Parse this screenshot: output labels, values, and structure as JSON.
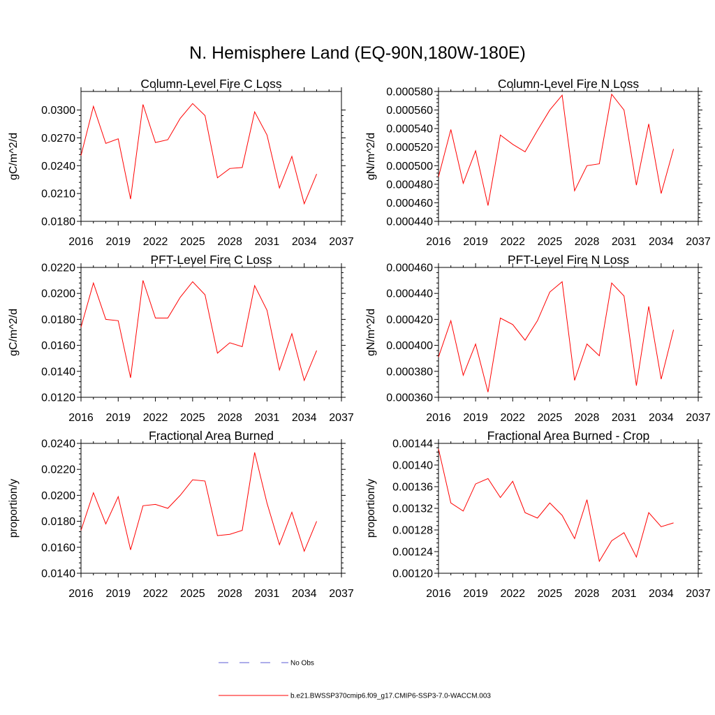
{
  "main_title": "N. Hemisphere Land (EQ-90N,180W-180E)",
  "colors": {
    "model_line": "#ff0000",
    "obs_line": "#5b5bd6",
    "axis": "#000000"
  },
  "legend": {
    "obs_label": "No Obs",
    "model_label": "b.e21.BWSSP370cmip6.f09_g17.CMIP6-SSP3-7.0-WACCM.003"
  },
  "chart_data": [
    {
      "type": "line",
      "title": "Column-Level Fire C Loss",
      "ylabel": "gC/m^2/d",
      "xlabel": "",
      "xlim": [
        2016,
        2037
      ],
      "x_ticks": [
        2016,
        2019,
        2022,
        2025,
        2028,
        2031,
        2034,
        2037
      ],
      "ylim": [
        0.018,
        0.032
      ],
      "y_ticks": [
        0.018,
        0.021,
        0.024,
        0.027,
        0.03
      ],
      "y_decimals": 4,
      "series": [
        {
          "name": "b.e21.BWSSP370cmip6.f09_g17.CMIP6-SSP3-7.0-WACCM.003",
          "x": [
            2016,
            2017,
            2018,
            2019,
            2020,
            2021,
            2022,
            2023,
            2024,
            2025,
            2026,
            2027,
            2028,
            2029,
            2030,
            2031,
            2032,
            2033,
            2034,
            2035
          ],
          "values": [
            0.0251,
            0.0304,
            0.0264,
            0.0269,
            0.0204,
            0.0306,
            0.0265,
            0.0268,
            0.0291,
            0.0307,
            0.0294,
            0.0227,
            0.0237,
            0.0238,
            0.0298,
            0.0273,
            0.0216,
            0.025,
            0.0199,
            0.0231
          ]
        }
      ]
    },
    {
      "type": "line",
      "title": "Column-Level Fire N Loss",
      "ylabel": "gN/m^2/d",
      "xlabel": "",
      "xlim": [
        2016,
        2037
      ],
      "x_ticks": [
        2016,
        2019,
        2022,
        2025,
        2028,
        2031,
        2034,
        2037
      ],
      "ylim": [
        0.00044,
        0.00058
      ],
      "y_ticks": [
        0.00044,
        0.00046,
        0.00048,
        0.0005,
        0.00052,
        0.00054,
        0.00056,
        0.00058
      ],
      "y_decimals": 6,
      "series": [
        {
          "name": "b.e21.BWSSP370cmip6.f09_g17.CMIP6-SSP3-7.0-WACCM.003",
          "x": [
            2016,
            2017,
            2018,
            2019,
            2020,
            2021,
            2022,
            2023,
            2024,
            2025,
            2026,
            2027,
            2028,
            2029,
            2030,
            2031,
            2032,
            2033,
            2034,
            2035
          ],
          "values": [
            0.000488,
            0.000539,
            0.000481,
            0.000516,
            0.000457,
            0.000533,
            0.000523,
            0.000515,
            0.000538,
            0.00056,
            0.000576,
            0.000473,
            0.0005,
            0.000502,
            0.000577,
            0.00056,
            0.000479,
            0.000545,
            0.00047,
            0.000518
          ]
        }
      ]
    },
    {
      "type": "line",
      "title": "PFT-Level Fire C Loss",
      "ylabel": "gC/m^2/d",
      "xlabel": "",
      "xlim": [
        2016,
        2037
      ],
      "x_ticks": [
        2016,
        2019,
        2022,
        2025,
        2028,
        2031,
        2034,
        2037
      ],
      "ylim": [
        0.012,
        0.022
      ],
      "y_ticks": [
        0.012,
        0.014,
        0.016,
        0.018,
        0.02,
        0.022
      ],
      "y_decimals": 4,
      "series": [
        {
          "name": "b.e21.BWSSP370cmip6.f09_g17.CMIP6-SSP3-7.0-WACCM.003",
          "x": [
            2016,
            2017,
            2018,
            2019,
            2020,
            2021,
            2022,
            2023,
            2024,
            2025,
            2026,
            2027,
            2028,
            2029,
            2030,
            2031,
            2032,
            2033,
            2034,
            2035
          ],
          "values": [
            0.0174,
            0.0208,
            0.018,
            0.0179,
            0.0135,
            0.021,
            0.0181,
            0.0181,
            0.0197,
            0.0209,
            0.0199,
            0.0154,
            0.0162,
            0.0159,
            0.0206,
            0.0187,
            0.0141,
            0.0169,
            0.0133,
            0.0156
          ]
        }
      ]
    },
    {
      "type": "line",
      "title": "PFT-Level Fire N Loss",
      "ylabel": "gN/m^2/d",
      "xlabel": "",
      "xlim": [
        2016,
        2037
      ],
      "x_ticks": [
        2016,
        2019,
        2022,
        2025,
        2028,
        2031,
        2034,
        2037
      ],
      "ylim": [
        0.00036,
        0.00046
      ],
      "y_ticks": [
        0.00036,
        0.00038,
        0.0004,
        0.00042,
        0.00044,
        0.00046
      ],
      "y_decimals": 6,
      "series": [
        {
          "name": "b.e21.BWSSP370cmip6.f09_g17.CMIP6-SSP3-7.0-WACCM.003",
          "x": [
            2016,
            2017,
            2018,
            2019,
            2020,
            2021,
            2022,
            2023,
            2024,
            2025,
            2026,
            2027,
            2028,
            2029,
            2030,
            2031,
            2032,
            2033,
            2034,
            2035
          ],
          "values": [
            0.000391,
            0.000419,
            0.000377,
            0.000401,
            0.000364,
            0.000421,
            0.000416,
            0.000404,
            0.000419,
            0.000441,
            0.000449,
            0.000373,
            0.000401,
            0.000392,
            0.000448,
            0.000438,
            0.000369,
            0.00043,
            0.000374,
            0.000412
          ]
        }
      ]
    },
    {
      "type": "line",
      "title": "Fractional Area Burned",
      "ylabel": "proportion/y",
      "xlabel": "",
      "xlim": [
        2016,
        2037
      ],
      "x_ticks": [
        2016,
        2019,
        2022,
        2025,
        2028,
        2031,
        2034,
        2037
      ],
      "ylim": [
        0.014,
        0.024
      ],
      "y_ticks": [
        0.014,
        0.016,
        0.018,
        0.02,
        0.022,
        0.024
      ],
      "y_decimals": 4,
      "series": [
        {
          "name": "b.e21.BWSSP370cmip6.f09_g17.CMIP6-SSP3-7.0-WACCM.003",
          "x": [
            2016,
            2017,
            2018,
            2019,
            2020,
            2021,
            2022,
            2023,
            2024,
            2025,
            2026,
            2027,
            2028,
            2029,
            2030,
            2031,
            2032,
            2033,
            2034,
            2035
          ],
          "values": [
            0.0173,
            0.0202,
            0.0178,
            0.0199,
            0.0158,
            0.0192,
            0.0193,
            0.019,
            0.02,
            0.0212,
            0.0211,
            0.0169,
            0.017,
            0.0173,
            0.0233,
            0.0194,
            0.0162,
            0.0187,
            0.0157,
            0.018
          ]
        }
      ]
    },
    {
      "type": "line",
      "title": "Fractional Area Burned - Crop",
      "ylabel": "proportion/y",
      "xlabel": "",
      "xlim": [
        2016,
        2037
      ],
      "x_ticks": [
        2016,
        2019,
        2022,
        2025,
        2028,
        2031,
        2034,
        2037
      ],
      "ylim": [
        0.0012,
        0.00144
      ],
      "y_ticks": [
        0.0012,
        0.00124,
        0.00128,
        0.00132,
        0.00136,
        0.0014,
        0.00144
      ],
      "y_decimals": 5,
      "series": [
        {
          "name": "b.e21.BWSSP370cmip6.f09_g17.CMIP6-SSP3-7.0-WACCM.003",
          "x": [
            2016,
            2017,
            2018,
            2019,
            2020,
            2021,
            2022,
            2023,
            2024,
            2025,
            2026,
            2027,
            2028,
            2029,
            2030,
            2031,
            2032,
            2033,
            2034,
            2035
          ],
          "values": [
            0.00143,
            0.00133,
            0.001315,
            0.001365,
            0.001375,
            0.00134,
            0.00137,
            0.001312,
            0.001302,
            0.00133,
            0.001307,
            0.001264,
            0.001336,
            0.001222,
            0.00126,
            0.001275,
            0.00123,
            0.001312,
            0.001286,
            0.001293
          ]
        }
      ]
    }
  ]
}
